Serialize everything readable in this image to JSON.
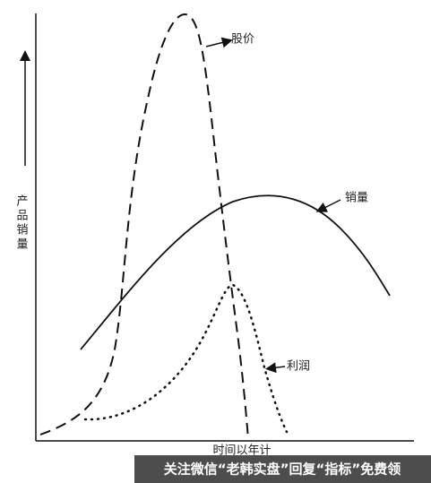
{
  "y_axis_label": "产品销量",
  "x_axis_label": "时间以年计",
  "curves": {
    "stock_price": "股价",
    "sales": "销量",
    "profit": "利润"
  },
  "watermark": "关注微信“老韩实盘”回复“指标”免费领"
}
